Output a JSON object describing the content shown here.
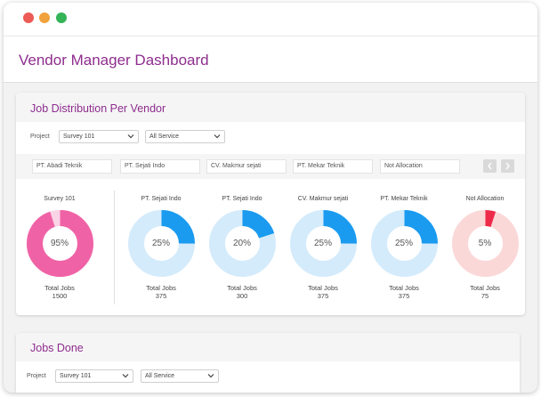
{
  "window": {
    "dots": {
      "red": "#ed5b56",
      "yellow": "#f0a13b",
      "green": "#34b456"
    }
  },
  "header": {
    "title": "Vendor Manager Dashboard"
  },
  "job_distribution": {
    "title": "Job Distribution Per Vendor",
    "filters": {
      "project_label": "Project",
      "project_value": "Survey 101",
      "service_value": "All Service"
    },
    "vendor_inputs": [
      "PT. Abadi Teknik",
      "PT. Sejati Indo",
      "CV. Makmur sejati",
      "PT. Mekar Teknik",
      "Not Allocation"
    ],
    "gauges": [
      {
        "name": "Survey 101",
        "percent_label": "95%",
        "percent": 95,
        "total_label": "Total Jobs",
        "total": "1500",
        "color": "#f062a6",
        "track": "#fbd3e6"
      },
      {
        "name": "PT. Sejati Indo",
        "percent_label": "25%",
        "percent": 25,
        "total_label": "Total Jobs",
        "total": "375",
        "color": "#1a9bf0",
        "track": "#d4ebfb"
      },
      {
        "name": "PT. Sejati Indo",
        "percent_label": "20%",
        "percent": 20,
        "total_label": "Total Jobs",
        "total": "300",
        "color": "#1a9bf0",
        "track": "#d4ebfb"
      },
      {
        "name": "CV. Makmur sejati",
        "percent_label": "25%",
        "percent": 25,
        "total_label": "Total Jobs",
        "total": "375",
        "color": "#1a9bf0",
        "track": "#d4ebfb"
      },
      {
        "name": "PT. Mekar Teknik",
        "percent_label": "25%",
        "percent": 25,
        "total_label": "Total Jobs",
        "total": "375",
        "color": "#1a9bf0",
        "track": "#d4ebfb"
      },
      {
        "name": "Not Allocation",
        "percent_label": "5%",
        "percent": 5,
        "total_label": "Total Jobs",
        "total": "75",
        "color": "#ee2a4a",
        "track": "#fbd8d8"
      }
    ]
  },
  "jobs_done": {
    "title": "Jobs Done",
    "filters": {
      "project_label": "Project",
      "project_value": "Survey 101",
      "service_value": "All Service"
    }
  }
}
